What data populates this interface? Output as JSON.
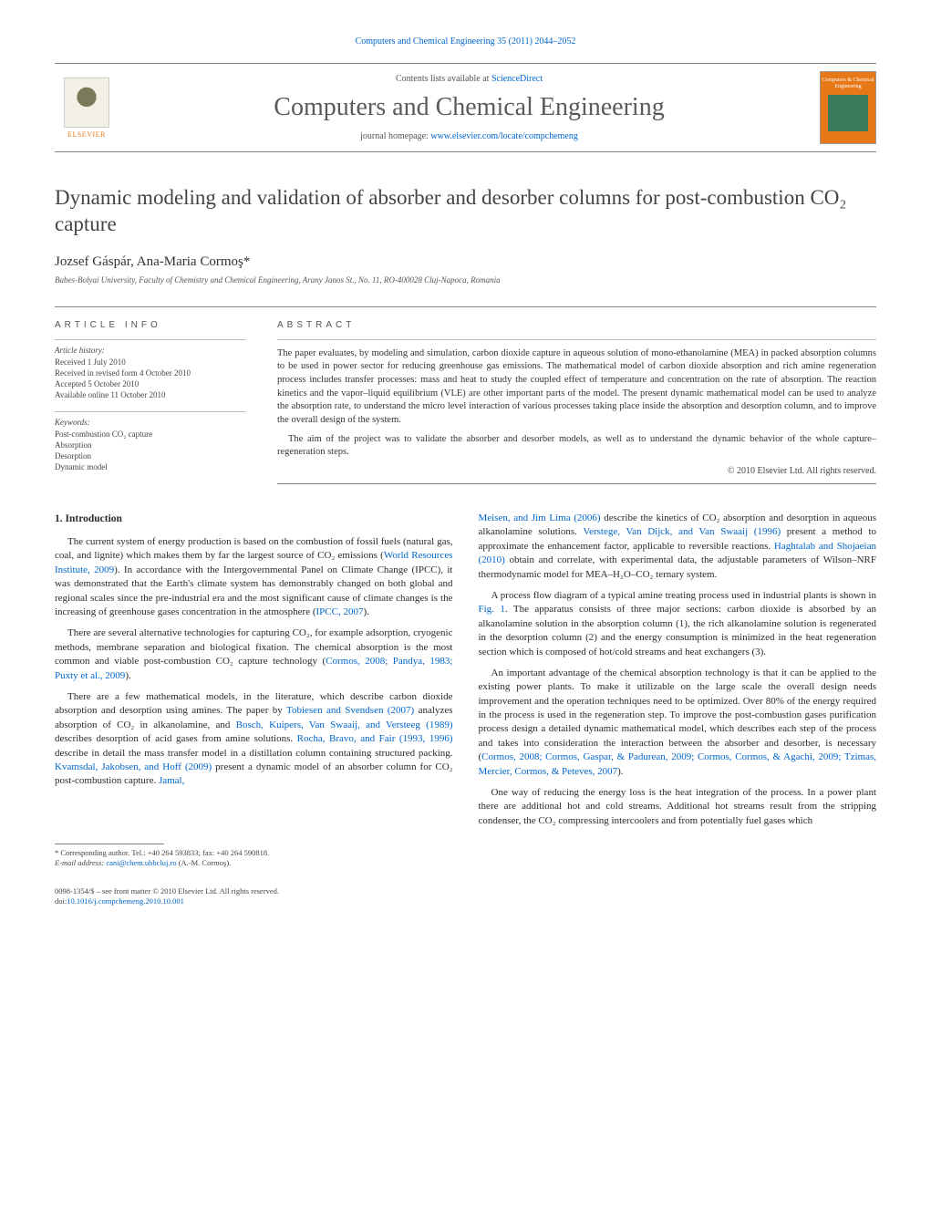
{
  "header": {
    "citation": "Computers and Chemical Engineering 35 (2011) 2044–2052",
    "contents_prefix": "Contents lists available at ",
    "contents_link": "ScienceDirect",
    "journal_name": "Computers and Chemical Engineering",
    "homepage_prefix": "journal homepage: ",
    "homepage_link": "www.elsevier.com/locate/compchemeng",
    "publisher": "ELSEVIER",
    "cover_top": "Computers & Chemical Engineering"
  },
  "title": "Dynamic modeling and validation of absorber and desorber columns for post-combustion CO₂ capture",
  "authors": "Jozsef Gáspár, Ana-Maria Cormoş",
  "corr_mark": "*",
  "affiliation": "Babes-Bolyai University, Faculty of Chemistry and Chemical Engineering, Arany Janos St., No. 11, RO-400028 Cluj-Napoca, Romania",
  "article_info": {
    "heading": "ARTICLE INFO",
    "history_label": "Article history:",
    "history": [
      "Received 1 July 2010",
      "Received in revised form 4 October 2010",
      "Accepted 5 October 2010",
      "Available online 11 October 2010"
    ],
    "keywords_label": "Keywords:",
    "keywords": [
      "Post-combustion CO₂ capture",
      "Absorption",
      "Desorption",
      "Dynamic model"
    ]
  },
  "abstract": {
    "heading": "ABSTRACT",
    "p1": "The paper evaluates, by modeling and simulation, carbon dioxide capture in aqueous solution of mono-ethanolamine (MEA) in packed absorption columns to be used in power sector for reducing greenhouse gas emissions. The mathematical model of carbon dioxide absorption and rich amine regeneration process includes transfer processes: mass and heat to study the coupled effect of temperature and concentration on the rate of absorption. The reaction kinetics and the vapor–liquid equilibrium (VLE) are other important parts of the model. The present dynamic mathematical model can be used to analyze the absorption rate, to understand the micro level interaction of various processes taking place inside the absorption and desorption column, and to improve the overall design of the system.",
    "p2": "The aim of the project was to validate the absorber and desorber models, as well as to understand the dynamic behavior of the whole capture–regeneration steps.",
    "copyright": "© 2010 Elsevier Ltd. All rights reserved."
  },
  "body": {
    "section_num": "1.",
    "section_title": "Introduction",
    "left": {
      "p1_a": "The current system of energy production is based on the combustion of fossil fuels (natural gas, coal, and lignite) which makes them by far the largest source of CO₂ emissions (",
      "p1_link1": "World Resources Institute, 2009",
      "p1_b": "). In accordance with the Intergovernmental Panel on Climate Change (IPCC), it was demonstrated that the Earth's climate system has demonstrably changed on both global and regional scales since the pre-industrial era and the most significant cause of climate changes is the increasing of greenhouse gases concentration in the atmosphere (",
      "p1_link2": "IPCC, 2007",
      "p1_c": ").",
      "p2_a": "There are several alternative technologies for capturing CO₂, for example adsorption, cryogenic methods, membrane separation and biological fixation. The chemical absorption is the most common and viable post-combustion CO₂ capture technology (",
      "p2_link": "Cormos, 2008; Pandya, 1983; Puxty et al., 2009",
      "p2_b": ").",
      "p3_a": "There are a few mathematical models, in the literature, which describe carbon dioxide absorption and desorption using amines. The paper by ",
      "p3_link1": "Tobiesen and Svendsen (2007)",
      "p3_b": " analyzes absorption of CO₂ in alkanolamine, and ",
      "p3_link2": "Bosch, Kuipers, Van Swaaij, and Versteeg (1989)",
      "p3_c": " describes desorption of acid gases from amine solutions. ",
      "p3_link3": "Rocha, Bravo, and Fair (1993, 1996)",
      "p3_d": " describe in detail the mass transfer model in a distillation column containing structured packing. ",
      "p3_link4": "Kvamsdal, Jakobsen, and Hoff (2009)",
      "p3_e": " present a dynamic model of an absorber column for CO₂ post-combustion capture. ",
      "p3_link5": "Jamal,"
    },
    "right": {
      "p1_link0": "Meisen, and Jim Lima (2006)",
      "p1_a": " describe the kinetics of CO₂ absorption and desorption in aqueous alkanolamine solutions. ",
      "p1_link1": "Verstege, Van Dijck, and Van Swaaij (1996)",
      "p1_b": " present a method to approximate the enhancement factor, applicable to reversible reactions. ",
      "p1_link2": "Haghtalab and Shojaeian (2010)",
      "p1_c": " obtain and correlate, with experimental data, the adjustable parameters of Wilson–NRF thermodynamic model for MEA–H₂O–CO₂ ternary system.",
      "p2_a": "A process flow diagram of a typical amine treating process used in industrial plants is shown in ",
      "p2_link": "Fig. 1",
      "p2_b": ". The apparatus consists of three major sections: carbon dioxide is absorbed by an alkanolamine solution in the absorption column (1), the rich alkanolamine solution is regenerated in the desorption column (2) and the energy consumption is minimized in the heat regeneration section which is composed of hot/cold streams and heat exchangers (3).",
      "p3_a": "An important advantage of the chemical absorption technology is that it can be applied to the existing power plants. To make it utilizable on the large scale the overall design needs improvement and the operation techniques need to be optimized. Over 80% of the energy required in the process is used in the regeneration step. To improve the post-combustion gases purification process design a detailed dynamic mathematical model, which describes each step of the process and takes into consideration the interaction between the absorber and desorber, is necessary (",
      "p3_link": "Cormos, 2008; Cormos, Gaspar, & Padurean, 2009; Cormos, Cormos, & Agachi, 2009; Tzimas, Mercier, Cormos, & Peteves, 2007",
      "p3_b": ").",
      "p4": "One way of reducing the energy loss is the heat integration of the process. In a power plant there are additional hot and cold streams. Additional hot streams result from the stripping condenser, the CO₂ compressing intercoolers and from potentially fuel gases which"
    }
  },
  "footnote": {
    "corr": "* Corresponding author. Tel.: +40 264 593833; fax: +40 264 590818.",
    "email_label": "E-mail address: ",
    "email": "cani@chem.ubbcluj.ro",
    "email_suffix": " (A.-M. Cormoş)."
  },
  "footer": {
    "line1": "0098-1354/$ – see front matter © 2010 Elsevier Ltd. All rights reserved.",
    "doi_prefix": "doi:",
    "doi": "10.1016/j.compchemeng.2010.10.001"
  },
  "colors": {
    "link": "#0066cc",
    "accent": "#e67817",
    "text": "#2a2a2a",
    "rule": "#888888"
  }
}
